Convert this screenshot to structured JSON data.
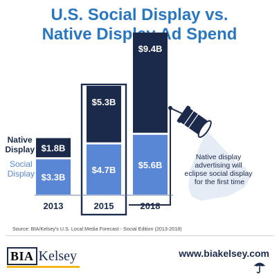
{
  "title_line1": "U.S. Social Display vs.",
  "title_line2": "Native Display Ad Spend",
  "colors": {
    "title": "#2a77bf",
    "native": "#1b2a4a",
    "social": "#5a86d6",
    "axis": "#6b7fa8",
    "spotlight": "#e6ecf6"
  },
  "chart_data": {
    "type": "bar",
    "stacked": true,
    "categories": [
      "2013",
      "2015",
      "2018"
    ],
    "series": [
      {
        "name": "Social Display",
        "values": [
          3.3,
          4.7,
          5.6
        ],
        "labels": [
          "$3.3B",
          "$4.7B",
          "$5.6B"
        ]
      },
      {
        "name": "Native Display",
        "values": [
          1.8,
          5.3,
          9.4
        ],
        "labels": [
          "$1.8B",
          "$5.3B",
          "$9.4B"
        ]
      }
    ],
    "legend_native": [
      "Native",
      "Display"
    ],
    "legend_social": [
      "Social",
      "Display"
    ],
    "highlight_category": "2015",
    "annotation": [
      "Native display",
      "advertising will",
      "eclipse social display",
      "for the first time"
    ]
  },
  "source": "Source: BIA/Kelsey's U.S. Local Media Forecast - Social Edition (2013-2018)",
  "logo": {
    "bia": "BIA",
    "kelsey": "Kelsey"
  },
  "website": "www.biakelsey.com",
  "icons": {
    "spotlight": "spotlight-icon",
    "umbrella": "umbrella-icon"
  }
}
